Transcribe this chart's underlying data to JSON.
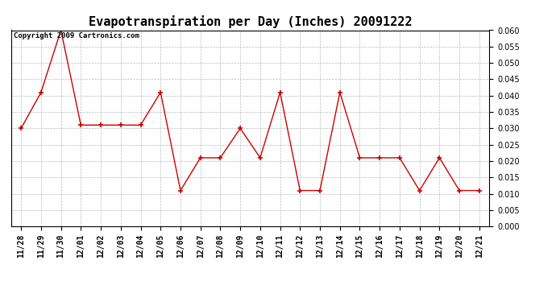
{
  "title": "Evapotranspiration per Day (Inches) 20091222",
  "copyright_text": "Copyright 2009 Cartronics.com",
  "x_labels": [
    "11/28",
    "11/29",
    "11/30",
    "12/01",
    "12/02",
    "12/03",
    "12/04",
    "12/05",
    "12/06",
    "12/07",
    "12/08",
    "12/09",
    "12/10",
    "12/11",
    "12/12",
    "12/13",
    "12/14",
    "12/15",
    "12/16",
    "12/17",
    "12/18",
    "12/19",
    "12/20",
    "12/21"
  ],
  "y_values": [
    0.03,
    0.041,
    0.06,
    0.031,
    0.031,
    0.031,
    0.031,
    0.041,
    0.011,
    0.021,
    0.021,
    0.03,
    0.021,
    0.041,
    0.011,
    0.011,
    0.041,
    0.021,
    0.021,
    0.021,
    0.011,
    0.021,
    0.011,
    0.011
  ],
  "line_color": "#cc0000",
  "marker": "+",
  "marker_color": "#cc0000",
  "ylim": [
    0.0,
    0.06
  ],
  "yticks": [
    0.0,
    0.005,
    0.01,
    0.015,
    0.02,
    0.025,
    0.03,
    0.035,
    0.04,
    0.045,
    0.05,
    0.055,
    0.06
  ],
  "background_color": "#ffffff",
  "grid_color": "#bbbbbb",
  "title_fontsize": 11,
  "tick_fontsize": 7,
  "copyright_fontsize": 6.5,
  "fig_width": 6.9,
  "fig_height": 3.75,
  "dpi": 100
}
